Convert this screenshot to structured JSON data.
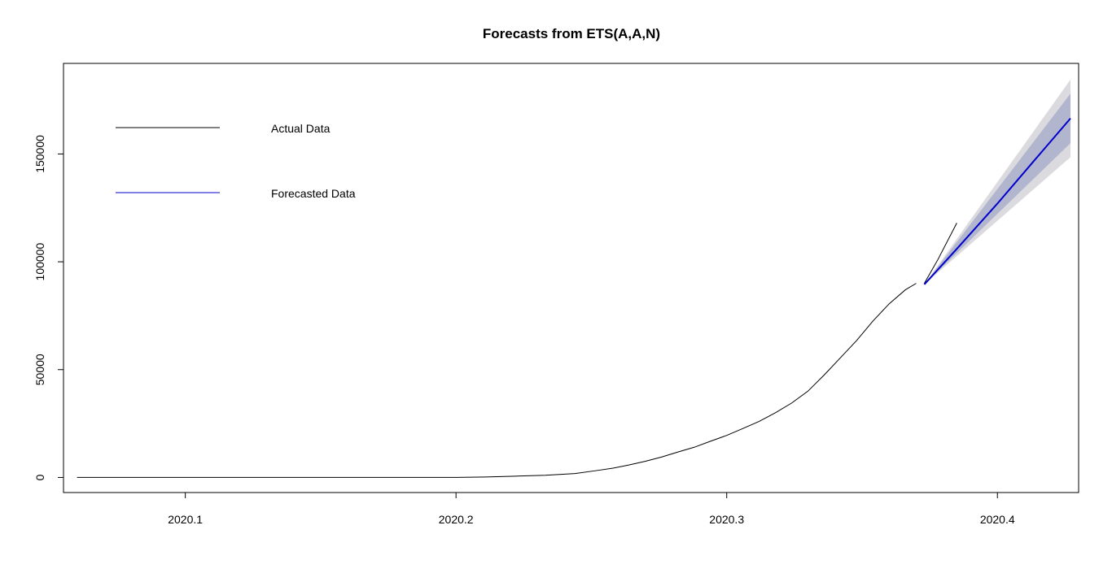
{
  "chart_data": {
    "type": "line",
    "title": "Forecasts from ETS(A,A,N)",
    "xlabel": "",
    "ylabel": "",
    "xlim": [
      2020.055,
      2020.43
    ],
    "ylim": [
      -7000,
      192000
    ],
    "x_ticks": [
      2020.1,
      2020.2,
      2020.3,
      2020.4
    ],
    "x_tick_labels": [
      "2020.1",
      "2020.2",
      "2020.3",
      "2020.4"
    ],
    "y_ticks": [
      0,
      50000,
      100000,
      150000
    ],
    "y_tick_labels": [
      "0",
      "50000",
      "100000",
      "150000"
    ],
    "legend": {
      "placement": "top-left",
      "entries": [
        {
          "label": "Actual Data",
          "color": "#000000"
        },
        {
          "label": "Forecasted Data",
          "color": "#0000cd"
        }
      ]
    },
    "series": [
      {
        "name": "Actual Data",
        "color": "#000000",
        "x": [
          2020.06,
          2020.1,
          2020.15,
          2020.2,
          2020.211,
          2020.222,
          2020.233,
          2020.244,
          2020.252,
          2020.258,
          2020.264,
          2020.27,
          2020.276,
          2020.282,
          2020.288,
          2020.294,
          2020.3,
          2020.306,
          2020.312,
          2020.318,
          2020.324,
          2020.33,
          2020.336,
          2020.342,
          2020.348,
          2020.354,
          2020.36,
          2020.366,
          2020.37
        ],
        "y": [
          0,
          0,
          0,
          0,
          200,
          600,
          1000,
          1800,
          3200,
          4300,
          5800,
          7500,
          9500,
          11800,
          14000,
          16800,
          19500,
          22700,
          26000,
          30000,
          34500,
          40000,
          47500,
          55500,
          63500,
          72500,
          80500,
          87000,
          90000
        ]
      },
      {
        "name": "Actual Data (continued)",
        "color": "#000000",
        "x": [
          2020.373,
          2020.378,
          2020.385
        ],
        "y": [
          90000,
          101000,
          118000
        ]
      },
      {
        "name": "Forecasted Data",
        "color": "#0000cd",
        "x": [
          2020.373,
          2020.385,
          2020.4,
          2020.415,
          2020.427
        ],
        "y": [
          89500,
          106000,
          127000,
          149000,
          166500
        ]
      }
    ],
    "intervals": [
      {
        "level": 80,
        "color": "#b1b5ce",
        "x": [
          2020.373,
          2020.427
        ],
        "lower": [
          89500,
          155000
        ],
        "upper": [
          89500,
          178000
        ]
      },
      {
        "level": 95,
        "color": "#dbdbdf",
        "x": [
          2020.373,
          2020.427
        ],
        "lower": [
          89500,
          148500
        ],
        "upper": [
          89500,
          184500
        ]
      }
    ]
  }
}
